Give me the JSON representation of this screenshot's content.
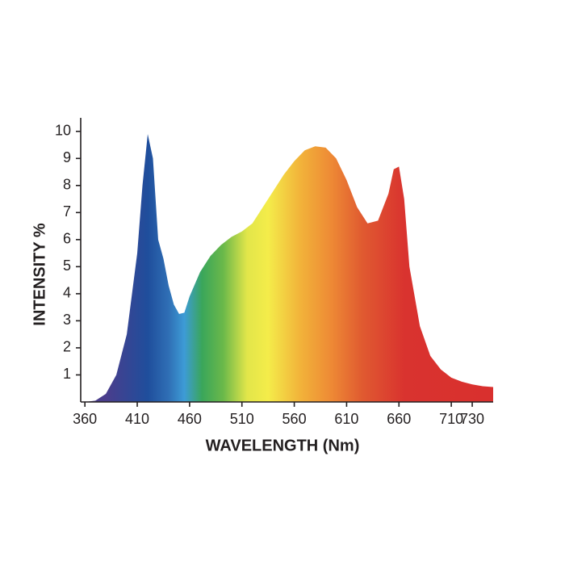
{
  "chart_data": {
    "type": "area",
    "x_label": "WAVELENGTH (Nm)",
    "y_label": "INTENSITY %",
    "x": [
      360,
      370,
      380,
      390,
      400,
      410,
      415,
      420,
      425,
      430,
      435,
      440,
      445,
      450,
      455,
      460,
      470,
      480,
      490,
      500,
      510,
      520,
      530,
      540,
      550,
      560,
      570,
      580,
      590,
      600,
      610,
      620,
      630,
      640,
      650,
      655,
      660,
      665,
      670,
      680,
      690,
      700,
      710,
      720,
      730,
      740,
      750
    ],
    "values": [
      0,
      0.05,
      0.3,
      1,
      2.5,
      5.5,
      8,
      9.9,
      9,
      6,
      5.3,
      4.3,
      3.6,
      3.25,
      3.3,
      3.9,
      4.8,
      5.4,
      5.8,
      6.1,
      6.3,
      6.6,
      7.2,
      7.8,
      8.4,
      8.9,
      9.3,
      9.45,
      9.4,
      9.0,
      8.2,
      7.2,
      6.6,
      6.7,
      7.7,
      8.6,
      8.7,
      7.5,
      5.0,
      2.8,
      1.7,
      1.2,
      0.9,
      0.75,
      0.65,
      0.58,
      0.55
    ],
    "gradient": [
      {
        "x": 380,
        "color": "#4a3d8c"
      },
      {
        "x": 420,
        "color": "#1f4e9c"
      },
      {
        "x": 440,
        "color": "#2f6fb5"
      },
      {
        "x": 455,
        "color": "#3d9bd6"
      },
      {
        "x": 472,
        "color": "#3aa65a"
      },
      {
        "x": 492,
        "color": "#6ab84a"
      },
      {
        "x": 515,
        "color": "#e2e64a"
      },
      {
        "x": 535,
        "color": "#f4ec4a"
      },
      {
        "x": 565,
        "color": "#f2b43a"
      },
      {
        "x": 595,
        "color": "#ee8a35"
      },
      {
        "x": 625,
        "color": "#e05a30"
      },
      {
        "x": 665,
        "color": "#d9332f"
      },
      {
        "x": 750,
        "color": "#d9302e"
      }
    ],
    "xlim": [
      356,
      750
    ],
    "ylim": [
      0,
      10.5
    ],
    "xticks": [
      360,
      410,
      460,
      510,
      560,
      610,
      660,
      710,
      730
    ],
    "yticks": [
      1,
      2,
      3,
      4,
      5,
      6,
      7,
      8,
      9,
      10
    ]
  }
}
